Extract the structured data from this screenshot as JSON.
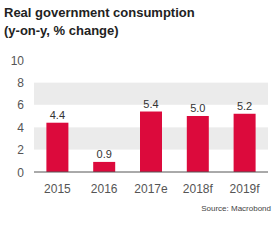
{
  "chart_data": {
    "type": "bar",
    "title": "Real government consumption",
    "subtitle": "(y-on-y, % change)",
    "categories": [
      "2015",
      "2016",
      "2017e",
      "2018f",
      "2019f"
    ],
    "values": [
      4.4,
      0.9,
      5.4,
      5.0,
      5.2
    ],
    "value_labels": [
      "4.4",
      "0.9",
      "5.4",
      "5.0",
      "5.2"
    ],
    "color": "#dc0a3c",
    "ylim": [
      0,
      10
    ],
    "yticks": [
      0,
      2,
      4,
      6,
      8,
      10
    ],
    "grid": true,
    "data_labels": true,
    "source": "Source: Macrobond"
  }
}
